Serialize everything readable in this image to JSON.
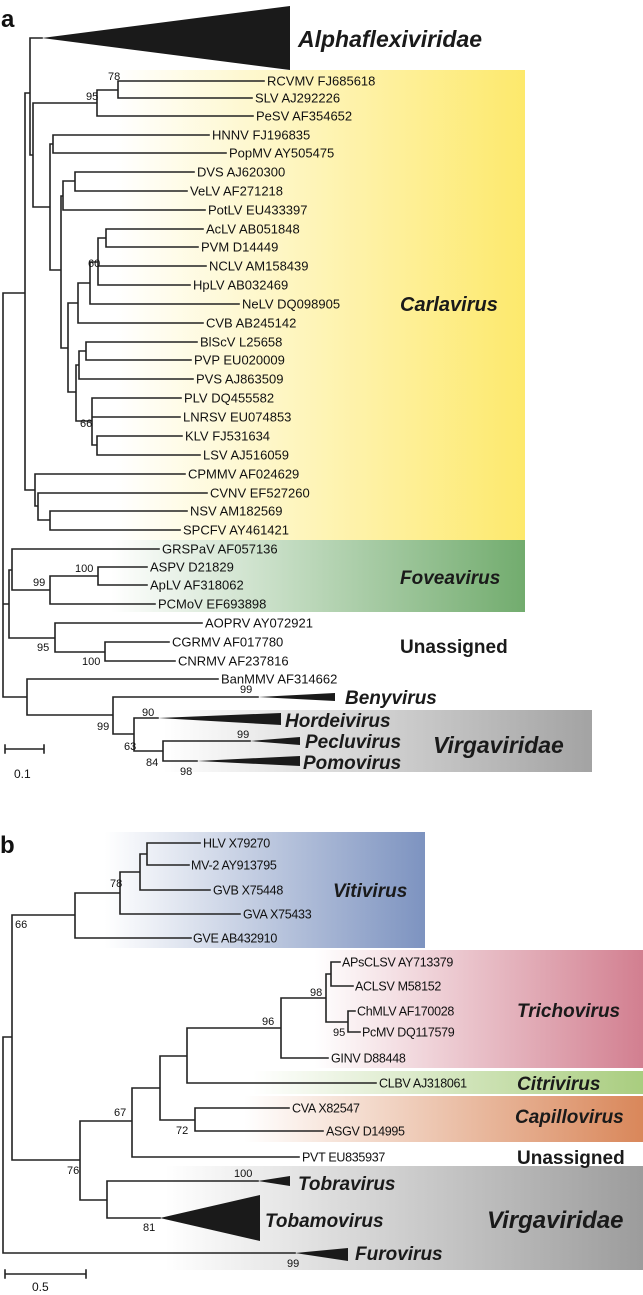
{
  "panel_a": {
    "label": "a",
    "leaves": [
      "RCVMV FJ685618",
      "SLV AJ292226",
      "PeSV AF354652",
      "HNNV FJ196835",
      "PopMV AY505475",
      "DVS AJ620300",
      "VeLV AF271218",
      "PotLV EU433397",
      "AcLV AB051848",
      "PVM D14449",
      "NCLV AM158439",
      "HpLV AB032469",
      "NeLV DQ098905",
      "CVB AB245142",
      "BlScV L25658",
      "PVP EU020009",
      "PVS AJ863509",
      "PLV DQ455582",
      "LNRSV EU074853",
      "KLV FJ531634",
      "LSV AJ516059",
      "CPMMV AF024629",
      "CVNV EF527260",
      "NSV AM182569",
      "SPCFV AY461421",
      "GRSPaV AF057136",
      "ASPV D21829",
      "ApLV AF318062",
      "PCMoV EF693898",
      "AOPRV AY072921",
      "CGRMV AF017780",
      "CNRMV AF237816",
      "BanMMV AF314662"
    ],
    "bootstrap": [
      "78",
      "95",
      "60",
      "66",
      "100",
      "99",
      "95",
      "100",
      "99",
      "90",
      "99",
      "63",
      "99",
      "84",
      "98"
    ],
    "clades": {
      "alphaflexiviridae": "Alphaflexiviridae",
      "carlavirus": "Carlavirus",
      "foveavirus": "Foveavirus",
      "unassigned": "Unassigned",
      "benyvirus": "Benyvirus",
      "hordeivirus": "Hordeivirus",
      "pecluvirus": "Pecluvirus",
      "pomovirus": "Pomovirus",
      "virgaviridae": "Virgaviridae"
    },
    "scale": "0.1"
  },
  "panel_b": {
    "label": "b",
    "leaves": [
      "HLV X79270",
      "MV-2 AY913795",
      "GVB X75448",
      "GVA X75433",
      "GVE AB432910",
      "APsCLSV AY713379",
      "ACLSV M58152",
      "ChMLV AF170028",
      "PcMV DQ117579",
      "GINV D88448",
      "CLBV AJ318061",
      "CVA X82547",
      "ASGV D14995",
      "PVT EU835937"
    ],
    "bootstrap": [
      "78",
      "66",
      "98",
      "96",
      "95",
      "67",
      "72",
      "76",
      "100",
      "81",
      "99"
    ],
    "clades": {
      "vitivirus": "Vitivirus",
      "trichovirus": "Trichovirus",
      "citrivirus": "Citrivirus",
      "capillovirus": "Capillovirus",
      "unassigned": "Unassigned",
      "tobravirus": "Tobravirus",
      "tobamovirus": "Tobamovirus",
      "virgaviridae": "Virgaviridae",
      "furovirus": "Furovirus"
    },
    "scale": "0.5"
  },
  "colors": {
    "carlavirus": "#fde96c",
    "foveavirus": "#72ac6e",
    "virgaviridae_a": "#a3a3a3",
    "vitivirus": "#7d93c0",
    "trichovirus": "#d27f90",
    "citrivirus": "#a9cd7f",
    "capillovirus": "#d9875a",
    "virgaviridae_b": "#9c9c9c",
    "branch": "#222222"
  }
}
